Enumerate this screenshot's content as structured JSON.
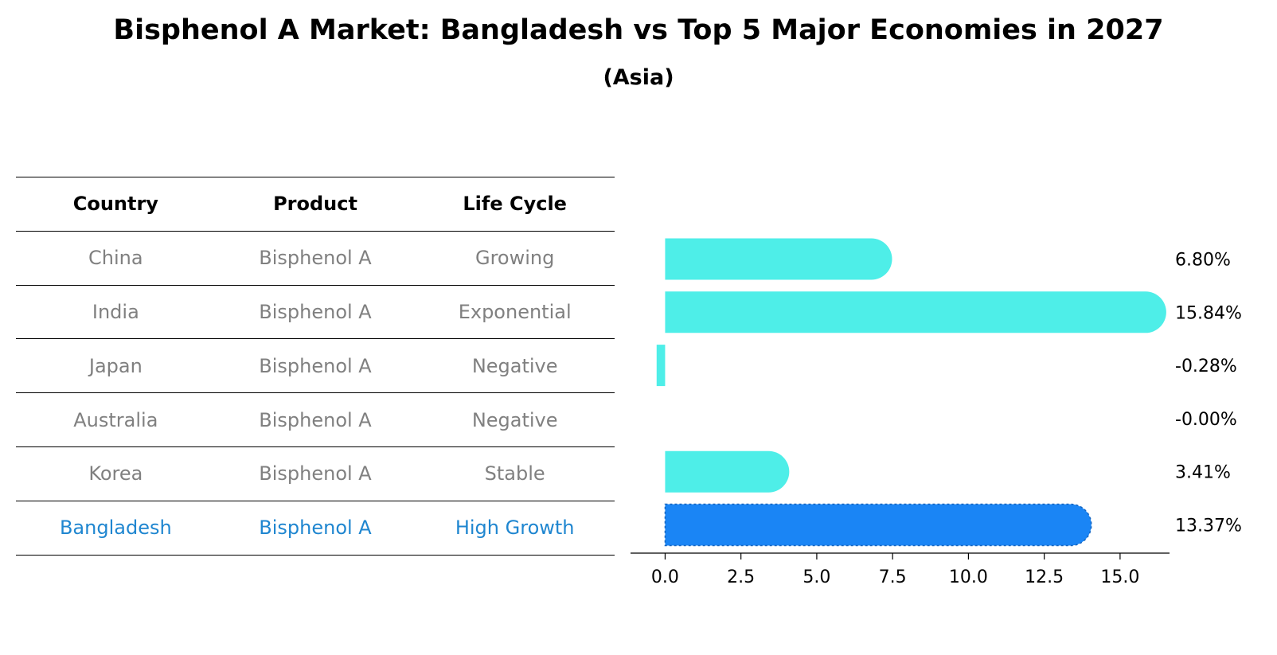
{
  "title": "Bisphenol A Market: Bangladesh vs Top 5 Major Economies in 2027",
  "subtitle": "(Asia)",
  "table": {
    "headers": [
      "Country",
      "Product",
      "Life Cycle"
    ],
    "rows": [
      [
        "China",
        "Bisphenol A",
        "Growing"
      ],
      [
        "India",
        "Bisphenol A",
        "Exponential"
      ],
      [
        "Japan",
        "Bisphenol A",
        "Negative"
      ],
      [
        "Australia",
        "Bisphenol A",
        "Negative"
      ],
      [
        "Korea",
        "Bisphenol A",
        "Stable"
      ],
      [
        "Bangladesh",
        "Bisphenol A",
        "High Growth"
      ]
    ]
  },
  "colors": {
    "bar": "#4eeee8",
    "highlight_bar": "#1a85f5",
    "highlight_text": "#1f86d0",
    "muted_text": "#808080"
  },
  "chart_data": {
    "type": "bar",
    "orientation": "horizontal",
    "categories": [
      "China",
      "India",
      "Japan",
      "Australia",
      "Korea",
      "Bangladesh"
    ],
    "values": [
      6.8,
      15.84,
      -0.28,
      -0.0,
      3.41,
      13.37
    ],
    "data_labels": [
      "6.80%",
      "15.84%",
      "-0.28%",
      "-0.00%",
      "3.41%",
      "13.37%"
    ],
    "highlight": "Bangladesh",
    "xlim": [
      -1.14,
      16.63
    ],
    "xticks": [
      0,
      2.5,
      5,
      7.5,
      10,
      12.5,
      15
    ],
    "xtick_labels": [
      "0.0",
      "2.5",
      "5.0",
      "7.5",
      "10.0",
      "12.5",
      "15.0"
    ],
    "grid": false
  }
}
